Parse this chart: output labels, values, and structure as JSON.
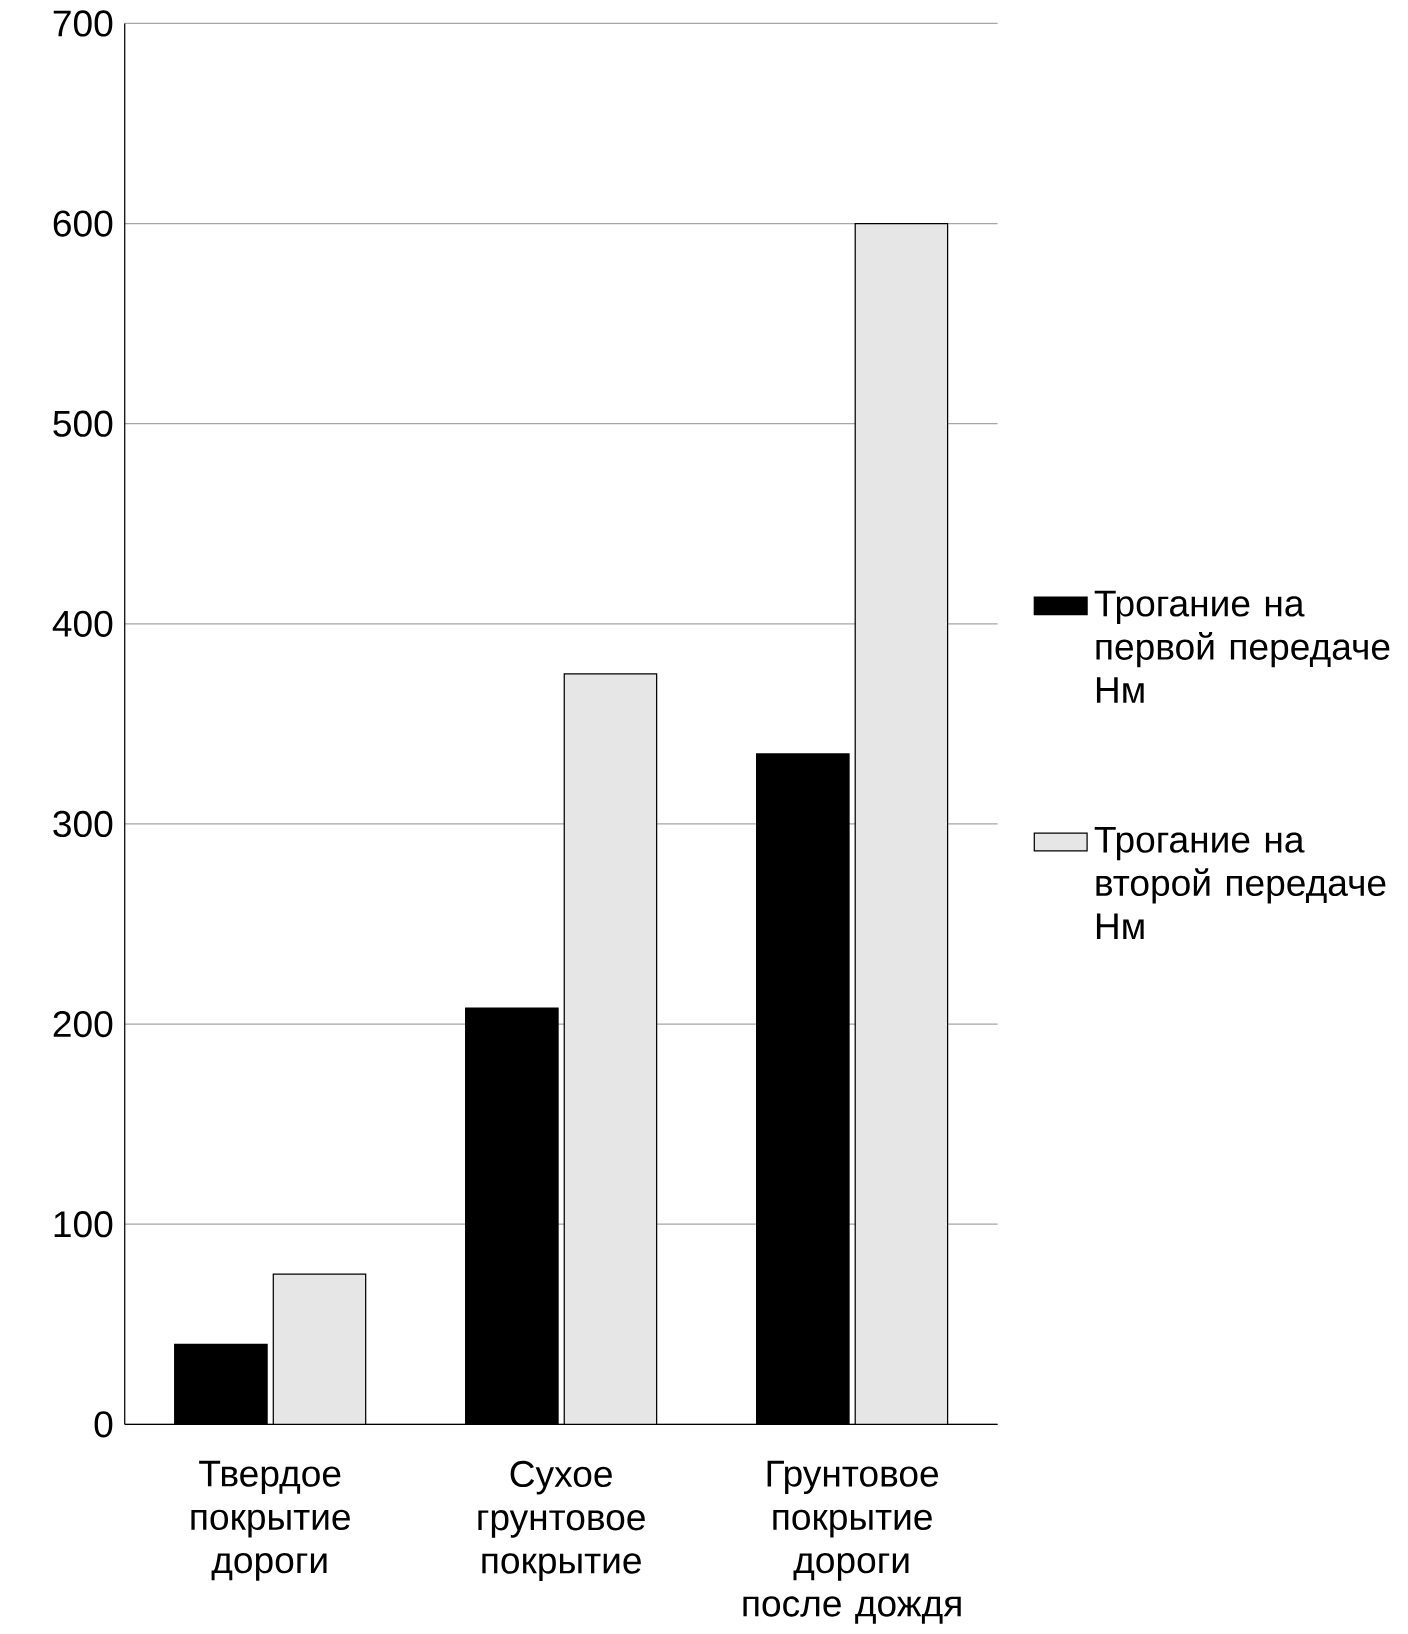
{
  "chart_data": {
    "type": "bar",
    "categories": [
      "Твердое покрытие дороги",
      "Сухое грунтовое покрытие",
      "Грунтовое покрытие дороги после дождя"
    ],
    "series": [
      {
        "name": "Трогание на первой передаче Нм",
        "color": "#000000",
        "values": [
          40,
          208,
          335
        ]
      },
      {
        "name": "Трогание на второй передаче Нм",
        "color": "#e6e6e6",
        "values": [
          75,
          375,
          600
        ]
      }
    ],
    "ylim": [
      0,
      700
    ],
    "yticks": [
      0,
      100,
      200,
      300,
      400,
      500,
      600,
      700
    ],
    "grid": "y",
    "legend": "right"
  }
}
